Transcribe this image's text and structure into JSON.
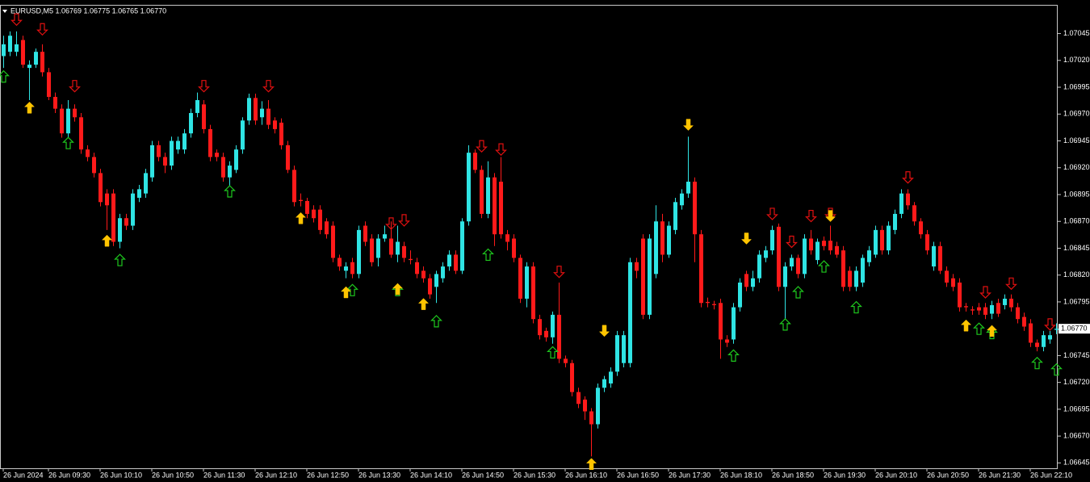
{
  "chart_data": {
    "type": "candlestick",
    "title": "EURUSD,M5 1.06769 1.06775 1.06765 1.06770",
    "bull_color": "#2fe4e4",
    "bear_color": "#ff1a1a",
    "categories": [
      "26 Jun 2024",
      null,
      null,
      null,
      null,
      null,
      null,
      "26 Jun 09:30",
      null,
      null,
      null,
      null,
      null,
      null,
      null,
      "26 Jun 10:10",
      null,
      null,
      null,
      null,
      null,
      null,
      null,
      "26 Jun 10:50",
      null,
      null,
      null,
      null,
      null,
      null,
      null,
      "26 Jun 11:30",
      null,
      null,
      null,
      null,
      null,
      null,
      null,
      "26 Jun 12:10",
      null,
      null,
      null,
      null,
      null,
      null,
      null,
      "26 Jun 12:50",
      null,
      null,
      null,
      null,
      null,
      null,
      null,
      "26 Jun 13:30",
      null,
      null,
      null,
      null,
      null,
      null,
      null,
      "26 Jun 14:10",
      null,
      null,
      null,
      null,
      null,
      null,
      null,
      "26 Jun 14:50",
      null,
      null,
      null,
      null,
      null,
      null,
      null,
      "26 Jun 15:30",
      null,
      null,
      null,
      null,
      null,
      null,
      null,
      "26 Jun 16:10",
      null,
      null,
      null,
      null,
      null,
      null,
      null,
      "26 Jun 16:50",
      null,
      null,
      null,
      null,
      null,
      null,
      null,
      "26 Jun 17:30",
      null,
      null,
      null,
      null,
      null,
      null,
      null,
      "26 Jun 18:10",
      null,
      null,
      null,
      null,
      null,
      null,
      null,
      "26 Jun 18:50",
      null,
      null,
      null,
      null,
      null,
      null,
      null,
      "26 Jun 19:30",
      null,
      null,
      null,
      null,
      null,
      null,
      null,
      "26 Jun 20:10",
      null,
      null,
      null,
      null,
      null,
      null,
      null,
      "26 Jun 20:50",
      null,
      null,
      null,
      null,
      null,
      null,
      null,
      "26 Jun 21:30",
      null,
      null,
      null,
      null,
      null,
      null,
      null,
      "26 Jun 22:10",
      null,
      null,
      null,
      null
    ],
    "open": [
      1.07024,
      1.07028,
      1.07028,
      1.07039,
      1.07013,
      1.07016,
      1.07028,
      1.07009,
      1.06986,
      1.06975,
      1.06952,
      1.06975,
      1.06967,
      1.06937,
      1.0693,
      1.06915,
      1.06896,
      1.06896,
      1.06851,
      1.06873,
      1.06866,
      1.06892,
      1.06896,
      1.06911,
      1.06941,
      1.0693,
      1.06922,
      1.06937,
      1.06937,
      1.06952,
      1.06971,
      1.06979,
      1.06956,
      1.06934,
      1.0693,
      1.06911,
      1.06918,
      1.06937,
      1.06964,
      1.06985,
      1.06967,
      1.06975,
      1.06964,
      1.06962,
      1.06941,
      1.06918,
      1.0689,
      1.06889,
      1.06881,
      1.06881,
      1.0687,
      1.06866,
      1.06836,
      1.06824,
      1.06832,
      1.06821,
      1.06866,
      1.06854,
      1.06836,
      1.06854,
      1.06854,
      1.06839,
      1.06847,
      1.06835,
      1.06832,
      1.06824,
      1.06817,
      1.06809,
      1.06817,
      1.06828,
      1.06839,
      1.06824,
      1.0687,
      1.06934,
      1.06918,
      1.06877,
      1.06911,
      1.06907,
      1.06858,
      1.06854,
      1.06836,
      1.06798,
      1.06828,
      1.06779,
      1.06768,
      1.06762,
      1.06783,
      1.06742,
      1.06738,
      1.06711,
      1.06704,
      1.06693,
      1.06681,
      1.06715,
      1.06719,
      1.0673,
      1.06738,
      1.06738,
      1.06832,
      1.06854,
      1.06783,
      1.06821,
      1.0687,
      1.06839,
      1.06862,
      1.06885,
      1.06896,
      1.06907,
      1.06858,
      1.06795,
      1.06793,
      1.06794,
      1.0676,
      1.0676,
      1.0679,
      1.06821,
      1.06809,
      1.06817,
      1.06836,
      1.06843,
      1.06865,
      1.06809,
      1.06828,
      1.06836,
      1.06821,
      1.06854,
      1.06834,
      1.06852,
      1.06852,
      1.06847,
      1.06843,
      1.06824,
      1.06809,
      1.06813,
      1.06832,
      1.06839,
      1.06862,
      1.06843,
      1.06862,
      1.06877,
      1.06896,
      1.06885,
      1.0687,
      1.06858,
      1.06828,
      1.06847,
      1.06824,
      1.06817,
      1.06813,
      1.06791,
      1.06788,
      1.0679,
      1.0679,
      1.06784,
      1.06794,
      1.06792,
      1.06798,
      1.0679,
      1.06781,
      1.06775,
      1.06757,
      1.06753,
      1.0676,
      1.06769
    ],
    "high": [
      1.07043,
      1.07047,
      1.07047,
      1.07043,
      1.0702,
      1.07031,
      1.07035,
      1.07013,
      1.0699,
      1.06979,
      1.06983,
      1.06979,
      1.06971,
      1.06941,
      1.06934,
      1.06919,
      1.069,
      1.069,
      1.06877,
      1.06877,
      1.069,
      1.06904,
      1.06919,
      1.06945,
      1.06945,
      1.06934,
      1.06949,
      1.06949,
      1.06956,
      1.06975,
      1.0699,
      1.06983,
      1.0696,
      1.06937,
      1.06934,
      1.06926,
      1.06941,
      1.06967,
      1.06989,
      1.06989,
      1.06982,
      1.06983,
      1.06967,
      1.06966,
      1.06945,
      1.06922,
      1.06896,
      1.06892,
      1.06885,
      1.06885,
      1.06873,
      1.0687,
      1.06839,
      1.06832,
      1.06836,
      1.06866,
      1.0687,
      1.06858,
      1.06858,
      1.06866,
      1.0687,
      1.06866,
      1.06851,
      1.06843,
      1.06836,
      1.06828,
      1.06821,
      1.06824,
      1.06832,
      1.06843,
      1.06843,
      1.06873,
      1.06941,
      1.06937,
      1.06922,
      1.06926,
      1.06915,
      1.0693,
      1.06862,
      1.06858,
      1.06839,
      1.06832,
      1.06832,
      1.06783,
      1.06771,
      1.06786,
      1.06813,
      1.06745,
      1.06741,
      1.06715,
      1.06707,
      1.06696,
      1.06719,
      1.06726,
      1.06734,
      1.06768,
      1.06768,
      1.06836,
      1.06836,
      1.06858,
      1.06858,
      1.06885,
      1.06877,
      1.0687,
      1.06892,
      1.069,
      1.06949,
      1.06911,
      1.06862,
      1.06799,
      1.06796,
      1.06798,
      1.06764,
      1.06794,
      1.06817,
      1.06824,
      1.06824,
      1.06843,
      1.06847,
      1.06866,
      1.06868,
      1.06832,
      1.06839,
      1.06839,
      1.06858,
      1.06862,
      1.06854,
      1.06856,
      1.06866,
      1.06851,
      1.06847,
      1.06828,
      1.06828,
      1.06839,
      1.06847,
      1.06866,
      1.06866,
      1.0687,
      1.06881,
      1.069,
      1.069,
      1.06888,
      1.06873,
      1.06862,
      1.06851,
      1.06851,
      1.06828,
      1.06821,
      1.06817,
      1.06794,
      1.06791,
      1.06794,
      1.06794,
      1.06796,
      1.06798,
      1.06802,
      1.06802,
      1.06794,
      1.06785,
      1.06779,
      1.0676,
      1.06768,
      1.06768,
      1.06775
    ],
    "low": [
      1.07013,
      1.07024,
      1.07024,
      1.07013,
      1.06983,
      1.07013,
      1.07005,
      1.06983,
      1.06971,
      1.06948,
      1.06948,
      1.06963,
      1.06933,
      1.06926,
      1.06911,
      1.06884,
      1.06862,
      1.06847,
      1.06845,
      1.06862,
      1.06862,
      1.06888,
      1.06892,
      1.06907,
      1.06926,
      1.06915,
      1.06918,
      1.06933,
      1.06933,
      1.06948,
      1.06967,
      1.06952,
      1.06926,
      1.06926,
      1.06907,
      1.06903,
      1.06915,
      1.06933,
      1.0696,
      1.0696,
      1.0696,
      1.06956,
      1.06952,
      1.06937,
      1.06915,
      1.06884,
      1.06884,
      1.06873,
      1.06869,
      1.06858,
      1.06854,
      1.06832,
      1.06824,
      1.06817,
      1.06817,
      1.06817,
      1.06847,
      1.06828,
      1.06828,
      1.06851,
      1.06836,
      1.06832,
      1.06832,
      1.0683,
      1.06817,
      1.06813,
      1.06798,
      1.06794,
      1.06813,
      1.06824,
      1.06821,
      1.06821,
      1.06866,
      1.06915,
      1.06873,
      1.06873,
      1.06847,
      1.06854,
      1.06843,
      1.06832,
      1.06794,
      1.0679,
      1.06775,
      1.0676,
      1.06758,
      1.06756,
      1.06738,
      1.06734,
      1.06707,
      1.06696,
      1.06685,
      1.06651,
      1.06677,
      1.06711,
      1.06715,
      1.06726,
      1.06734,
      1.06734,
      1.06817,
      1.06779,
      1.06779,
      1.06817,
      1.06832,
      1.06836,
      1.06858,
      1.06881,
      1.06892,
      1.06832,
      1.0679,
      1.0679,
      1.06788,
      1.06742,
      1.06753,
      1.06756,
      1.06786,
      1.06805,
      1.06805,
      1.06813,
      1.06832,
      1.06839,
      1.06805,
      1.06779,
      1.06824,
      1.06817,
      1.06817,
      1.06839,
      1.0683,
      1.06843,
      1.06839,
      1.06836,
      1.06805,
      1.06805,
      1.06805,
      1.06809,
      1.06828,
      1.06836,
      1.06839,
      1.06839,
      1.06858,
      1.06873,
      1.06881,
      1.06866,
      1.06854,
      1.06839,
      1.06824,
      1.06821,
      1.06809,
      1.06805,
      1.06786,
      1.06786,
      1.06783,
      1.06783,
      1.06779,
      1.06779,
      1.06781,
      1.06788,
      1.06786,
      1.06775,
      1.06768,
      1.06753,
      1.06749,
      1.06749,
      1.06756,
      1.06765
    ],
    "close": [
      1.07035,
      1.07043,
      1.07035,
      1.07016,
      1.07016,
      1.07028,
      1.07009,
      1.06986,
      1.06975,
      1.06952,
      1.06975,
      1.06967,
      1.06937,
      1.0693,
      1.06915,
      1.06888,
      1.06885,
      1.06851,
      1.06873,
      1.06866,
      1.06896,
      1.069,
      1.06915,
      1.06941,
      1.0693,
      1.06922,
      1.06945,
      1.06945,
      1.06952,
      1.06971,
      1.06983,
      1.06956,
      1.0693,
      1.0693,
      1.06911,
      1.06922,
      1.06937,
      1.06964,
      1.06985,
      1.06964,
      1.06975,
      1.0696,
      1.06956,
      1.06941,
      1.06918,
      1.06888,
      1.06889,
      1.06877,
      1.06873,
      1.06862,
      1.06858,
      1.06836,
      1.06828,
      1.06828,
      1.06821,
      1.06862,
      1.06851,
      1.06832,
      1.06854,
      1.06858,
      1.06839,
      1.06851,
      1.06836,
      1.06834,
      1.06821,
      1.06817,
      1.06802,
      1.06821,
      1.06828,
      1.06839,
      1.06824,
      1.0687,
      1.06934,
      1.06918,
      1.06877,
      1.06911,
      1.06858,
      1.06858,
      1.06851,
      1.06836,
      1.06798,
      1.06828,
      1.06779,
      1.06764,
      1.06762,
      1.06783,
      1.06742,
      1.06738,
      1.06711,
      1.067,
      1.06693,
      1.06681,
      1.06715,
      1.06723,
      1.0673,
      1.06764,
      1.06764,
      1.06832,
      1.06824,
      1.06783,
      1.06854,
      1.0687,
      1.06839,
      1.06866,
      1.06888,
      1.06896,
      1.06907,
      1.06858,
      1.06794,
      1.06794,
      1.06792,
      1.0676,
      1.06757,
      1.0679,
      1.06813,
      1.06809,
      1.06817,
      1.06839,
      1.06843,
      1.06862,
      1.06809,
      1.06828,
      1.06836,
      1.06821,
      1.06854,
      1.06843,
      1.06851,
      1.06847,
      1.06843,
      1.06839,
      1.06809,
      1.06809,
      1.06824,
      1.06836,
      1.06843,
      1.06862,
      1.06843,
      1.06866,
      1.06877,
      1.06896,
      1.06885,
      1.0687,
      1.06858,
      1.06843,
      1.06847,
      1.06824,
      1.06813,
      1.06809,
      1.0679,
      1.0679,
      1.06787,
      1.06787,
      1.06783,
      1.06792,
      1.06784,
      1.06798,
      1.0679,
      1.06779,
      1.06772,
      1.06757,
      1.06753,
      1.06764,
      1.06764,
      1.0677
    ],
    "ylim": [
      1.0664,
      1.07071
    ],
    "yticks": [
      {
        "value": 1.07045,
        "label": "1.07045"
      },
      {
        "value": 1.0702,
        "label": "1.07020"
      },
      {
        "value": 1.06995,
        "label": "1.06995"
      },
      {
        "value": 1.0697,
        "label": "1.06970"
      },
      {
        "value": 1.06945,
        "label": "1.06945"
      },
      {
        "value": 1.0692,
        "label": "1.06920"
      },
      {
        "value": 1.06895,
        "label": "1.06895"
      },
      {
        "value": 1.0687,
        "label": "1.06870"
      },
      {
        "value": 1.06845,
        "label": "1.06845"
      },
      {
        "value": 1.0682,
        "label": "1.06820"
      },
      {
        "value": 1.06795,
        "label": "1.06795"
      },
      {
        "value": 1.06745,
        "label": "1.06745"
      },
      {
        "value": 1.0672,
        "label": "1.06720"
      },
      {
        "value": 1.06695,
        "label": "1.06695"
      },
      {
        "value": 1.0667,
        "label": "1.06670"
      },
      {
        "value": 1.06645,
        "label": "1.06645"
      }
    ],
    "last_price": {
      "value": 1.0677,
      "label": "1.06770"
    },
    "grid": false,
    "signals": [
      {
        "direction": "down",
        "filled": false,
        "color": "#e01010",
        "points": [
          [
            2,
            1.07058
          ],
          [
            6,
            1.07049
          ],
          [
            11,
            1.06996
          ],
          [
            31,
            1.06996
          ],
          [
            41,
            1.06996
          ],
          [
            60,
            1.06868
          ],
          [
            62,
            1.06871
          ],
          [
            74,
            1.0694
          ],
          [
            77,
            1.06937
          ],
          [
            86,
            1.06823
          ],
          [
            119,
            1.06877
          ],
          [
            122,
            1.06851
          ],
          [
            125,
            1.06875
          ],
          [
            128,
            1.06877
          ],
          [
            140,
            1.06911
          ],
          [
            152,
            1.06804
          ],
          [
            156,
            1.06812
          ],
          [
            162,
            1.06774
          ]
        ]
      },
      {
        "direction": "up",
        "filled": false,
        "color": "#1ec81e",
        "points": [
          [
            0,
            1.07005
          ],
          [
            10,
            1.06943
          ],
          [
            18,
            1.06834
          ],
          [
            35,
            1.06898
          ],
          [
            54,
            1.06806
          ],
          [
            61,
            1.06806
          ],
          [
            67,
            1.06777
          ],
          [
            75,
            1.06839
          ],
          [
            85,
            1.06748
          ],
          [
            113,
            1.06745
          ],
          [
            121,
            1.06774
          ],
          [
            123,
            1.06804
          ],
          [
            127,
            1.06828
          ],
          [
            132,
            1.0679
          ],
          [
            151,
            1.0677
          ],
          [
            153,
            1.06766
          ],
          [
            160,
            1.06738
          ],
          [
            163,
            1.06732
          ]
        ]
      },
      {
        "direction": "up",
        "filled": true,
        "color": "#ffc400",
        "points": [
          [
            4,
            1.06976
          ],
          [
            16,
            1.06852
          ],
          [
            46,
            1.06873
          ],
          [
            53,
            1.06804
          ],
          [
            61,
            1.06807
          ],
          [
            65,
            1.06793
          ],
          [
            91,
            1.06644
          ],
          [
            149,
            1.06773
          ],
          [
            153,
            1.06768
          ]
        ]
      },
      {
        "direction": "down",
        "filled": true,
        "color": "#ffc400",
        "points": [
          [
            93,
            1.06768
          ],
          [
            106,
            1.0696
          ],
          [
            115,
            1.06854
          ],
          [
            128,
            1.06875
          ]
        ]
      }
    ]
  }
}
